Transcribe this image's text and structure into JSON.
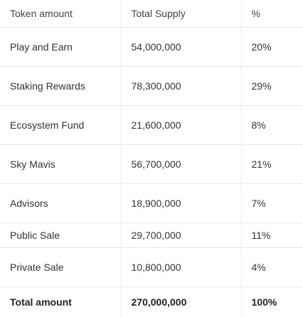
{
  "table": {
    "headers": [
      "Token amount",
      "Total Supply",
      "%"
    ],
    "rows": [
      [
        "Play and Earn",
        "54,000,000",
        "20%"
      ],
      [
        "Staking Rewards",
        "78,300,000",
        "29%"
      ],
      [
        "Ecosystem Fund",
        "21,600,000",
        "8%"
      ],
      [
        "Sky Mavis",
        "56,700,000",
        "21%"
      ],
      [
        "Advisors",
        "18,900,000",
        "7%"
      ],
      [
        "Public Sale",
        "29,700,000",
        "11%"
      ],
      [
        "Private Sale",
        "10,800,000",
        "4%"
      ]
    ],
    "total": [
      "Total amount",
      "270,000,000",
      "100%"
    ]
  }
}
